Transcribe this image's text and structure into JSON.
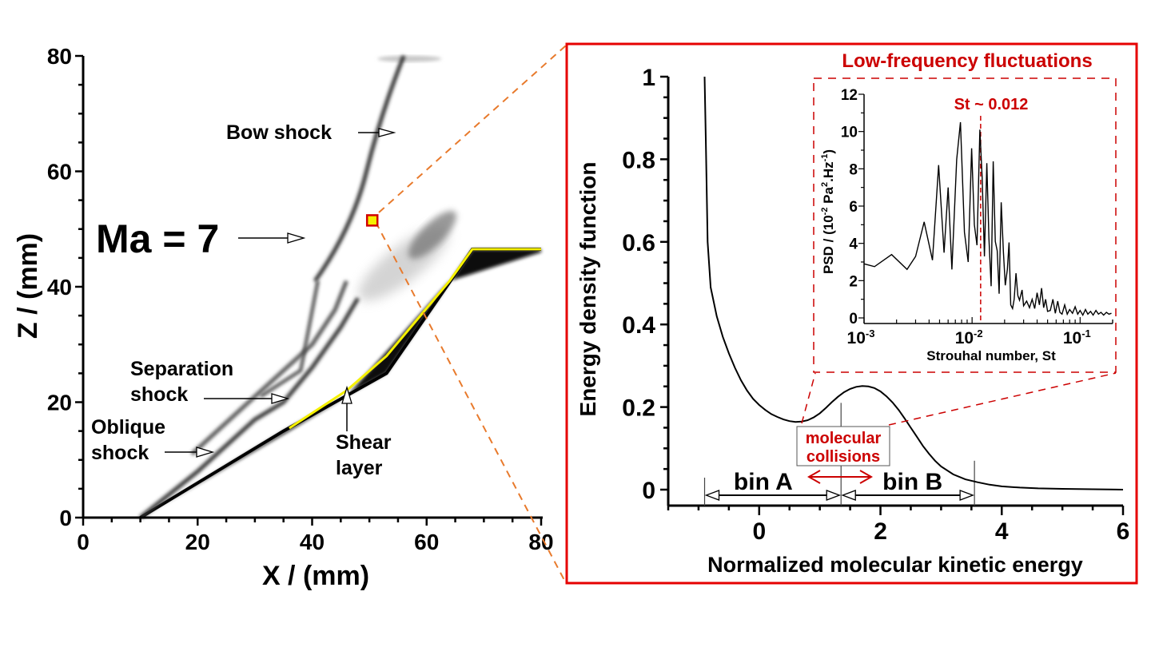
{
  "colors": {
    "frame_red": "#e00000",
    "annot_red": "#cc0000",
    "zoom_orange": "#e87a2c",
    "shear_yellow": "#f5f000",
    "axis": "#000000"
  },
  "chart_data": [
    {
      "id": "flowfield",
      "type": "heatmap",
      "title": "",
      "xlabel": "X / (mm)",
      "ylabel": "Z / (mm)",
      "xlim": [
        0,
        80
      ],
      "ylim": [
        0,
        80
      ],
      "xticks": [
        0,
        20,
        40,
        60,
        80
      ],
      "yticks": [
        0,
        20,
        40,
        60,
        80
      ],
      "xtick_labels": [
        "0",
        "20",
        "40",
        "60",
        "80"
      ],
      "ytick_labels": [
        "0",
        "20",
        "40",
        "60",
        "80"
      ],
      "grid": false,
      "colormap": "grayscale (numerical schlieren)",
      "geometry": {
        "wedge_surface": [
          [
            10,
            0
          ],
          [
            35,
            15
          ],
          [
            53,
            25
          ],
          [
            68,
            46.5
          ],
          [
            80,
            46.5
          ]
        ],
        "shear_layer": [
          [
            36,
            15.5
          ],
          [
            46,
            22
          ],
          [
            53,
            28
          ],
          [
            64,
            41
          ],
          [
            68,
            46.5
          ],
          [
            80,
            46.5
          ]
        ],
        "bow_shock": [
          [
            40.5,
            41
          ],
          [
            47,
            49
          ],
          [
            51,
            60
          ],
          [
            56,
            80
          ]
        ],
        "separation_shock": [
          [
            19,
            11
          ],
          [
            30,
            21
          ],
          [
            40,
            30
          ],
          [
            44,
            36
          ],
          [
            46,
            41
          ]
        ],
        "oblique_shock": [
          [
            10,
            0
          ],
          [
            20,
            8
          ],
          [
            30,
            17
          ],
          [
            35,
            20
          ]
        ]
      },
      "probe_point": {
        "x": 50.5,
        "z": 51.5
      },
      "annotations": [
        {
          "text": "Ma = 7",
          "target": [
            38,
            48
          ]
        },
        {
          "text": "Bow shock",
          "target": [
            54.5,
            66
          ]
        },
        {
          "text": "Separation shock",
          "target": [
            36.5,
            20.5
          ]
        },
        {
          "text": "Oblique shock",
          "target": [
            22.5,
            11.5
          ]
        },
        {
          "text": "Shear layer",
          "target": [
            46,
            23
          ]
        }
      ]
    },
    {
      "id": "energy_density",
      "type": "line",
      "title": "",
      "xlabel": "Normalized molecular kinetic energy",
      "ylabel": "Energy density function",
      "xlim": [
        -1.5,
        6
      ],
      "ylim": [
        -0.03,
        1
      ],
      "xticks": [
        0,
        2,
        4,
        6
      ],
      "yticks": [
        0,
        0.2,
        0.4,
        0.6,
        0.8,
        1
      ],
      "xtick_labels": [
        "0",
        "2",
        "4",
        "6"
      ],
      "ytick_labels": [
        "0",
        "0.2",
        "0.4",
        "0.6",
        "0.8",
        "1"
      ],
      "grid": false,
      "series": [
        {
          "name": "energy density",
          "x": [
            -0.9,
            -0.88,
            -0.85,
            -0.8,
            -0.7,
            -0.6,
            -0.5,
            -0.4,
            -0.3,
            -0.2,
            -0.1,
            0.0,
            0.1,
            0.2,
            0.3,
            0.4,
            0.5,
            0.6,
            0.7,
            0.8,
            0.9,
            1.0,
            1.1,
            1.2,
            1.3,
            1.4,
            1.5,
            1.6,
            1.7,
            1.8,
            1.9,
            2.0,
            2.1,
            2.2,
            2.3,
            2.4,
            2.5,
            2.6,
            2.7,
            2.8,
            2.9,
            3.0,
            3.2,
            3.4,
            3.6,
            3.8,
            4.0,
            4.3,
            4.6,
            5.0,
            5.5,
            6.0
          ],
          "y": [
            1.0,
            0.85,
            0.6,
            0.49,
            0.42,
            0.37,
            0.33,
            0.295,
            0.265,
            0.24,
            0.22,
            0.205,
            0.193,
            0.183,
            0.176,
            0.17,
            0.166,
            0.164,
            0.165,
            0.168,
            0.175,
            0.185,
            0.198,
            0.212,
            0.225,
            0.236,
            0.244,
            0.249,
            0.251,
            0.25,
            0.246,
            0.238,
            0.226,
            0.211,
            0.193,
            0.172,
            0.15,
            0.128,
            0.106,
            0.087,
            0.07,
            0.056,
            0.037,
            0.025,
            0.018,
            0.012,
            0.008,
            0.005,
            0.003,
            0.002,
            0.001,
            0.0
          ]
        }
      ],
      "markers": {
        "bin_edges": [
          -0.9,
          1.35,
          3.55
        ]
      },
      "annotations": [
        {
          "text": "bin A",
          "range": [
            -0.9,
            1.35
          ]
        },
        {
          "text": "bin B",
          "range": [
            1.35,
            3.55
          ]
        },
        {
          "text_lines": [
            "molecular",
            "collisions"
          ],
          "arrow": "double-headed between bins"
        }
      ]
    },
    {
      "id": "psd_inset",
      "type": "line",
      "title": "Low-frequency fluctuations",
      "xlabel": "Strouhal number, St",
      "ylabel": "PSD / (10^-2 Pa^2.Hz^-1)",
      "xscale": "log",
      "xlim": [
        0.001,
        0.2
      ],
      "ylim": [
        0,
        12
      ],
      "xticks": [
        0.001,
        0.01,
        0.1
      ],
      "yticks": [
        0,
        2,
        4,
        6,
        8,
        10,
        12
      ],
      "xtick_labels": [
        [
          "10",
          "-3"
        ],
        [
          "10",
          "-2"
        ],
        [
          "10",
          "-1"
        ]
      ],
      "ytick_labels": [
        "0",
        "2",
        "4",
        "6",
        "8",
        "10",
        "12"
      ],
      "grid": false,
      "reference_line": {
        "x": 0.012,
        "label": "St ~ 0.012"
      },
      "series": [
        {
          "name": "PSD",
          "x": [
            0.001,
            0.00125,
            0.0018,
            0.0025,
            0.003,
            0.0036,
            0.0043,
            0.0049,
            0.0055,
            0.006,
            0.0065,
            0.0072,
            0.0078,
            0.0085,
            0.0092,
            0.0099,
            0.0105,
            0.0111,
            0.0118,
            0.0124,
            0.013,
            0.0137,
            0.0143,
            0.015,
            0.0157,
            0.0164,
            0.0171,
            0.0178,
            0.0186,
            0.0195,
            0.0203,
            0.0212,
            0.022,
            0.0228,
            0.0237,
            0.0245,
            0.0255,
            0.0265,
            0.0275,
            0.029,
            0.03,
            0.032,
            0.034,
            0.036,
            0.038,
            0.04,
            0.042,
            0.044,
            0.046,
            0.048,
            0.05,
            0.053,
            0.056,
            0.059,
            0.062,
            0.065,
            0.068,
            0.072,
            0.076,
            0.08,
            0.085,
            0.09,
            0.095,
            0.1,
            0.106,
            0.112,
            0.118,
            0.125,
            0.132,
            0.14,
            0.148,
            0.156,
            0.165,
            0.175,
            0.185,
            0.195
          ],
          "y": [
            2.9,
            2.75,
            3.4,
            2.6,
            3.3,
            5.15,
            3.1,
            8.2,
            3.5,
            7.0,
            2.6,
            8.5,
            10.5,
            4.6,
            3.0,
            9.1,
            5.0,
            3.9,
            10.1,
            7.5,
            3.3,
            8.3,
            4.3,
            1.7,
            8.4,
            4.1,
            3.6,
            1.3,
            6.2,
            3.5,
            1.75,
            2.6,
            4.05,
            0.7,
            0.5,
            1.0,
            2.4,
            1.2,
            0.95,
            1.5,
            0.65,
            0.9,
            0.55,
            1.0,
            0.5,
            1.35,
            0.7,
            1.6,
            0.55,
            1.0,
            0.35,
            0.4,
            1.0,
            0.25,
            0.9,
            0.3,
            0.2,
            0.7,
            0.2,
            0.45,
            0.25,
            0.6,
            0.2,
            0.4,
            0.15,
            0.45,
            0.2,
            0.35,
            0.15,
            0.4,
            0.2,
            0.3,
            0.15,
            0.3,
            0.2,
            0.25
          ]
        }
      ]
    }
  ],
  "labels": {
    "ma": "Ma = 7",
    "bow_shock": "Bow shock",
    "separation_1": "Separation",
    "separation_2": "shock",
    "oblique_1": "Oblique",
    "oblique_2": "shock",
    "shear_1": "Shear",
    "shear_2": "layer",
    "bin_a": "bin A",
    "bin_b": "bin B",
    "collisions_1": "molecular",
    "collisions_2": "collisions",
    "inset_title": "Low-frequency fluctuations",
    "st_label": "St ~ 0.012",
    "psd_ylabel_parts": [
      "PSD / (10",
      "-2",
      " Pa",
      "2",
      ".Hz",
      "-1",
      ")"
    ]
  }
}
